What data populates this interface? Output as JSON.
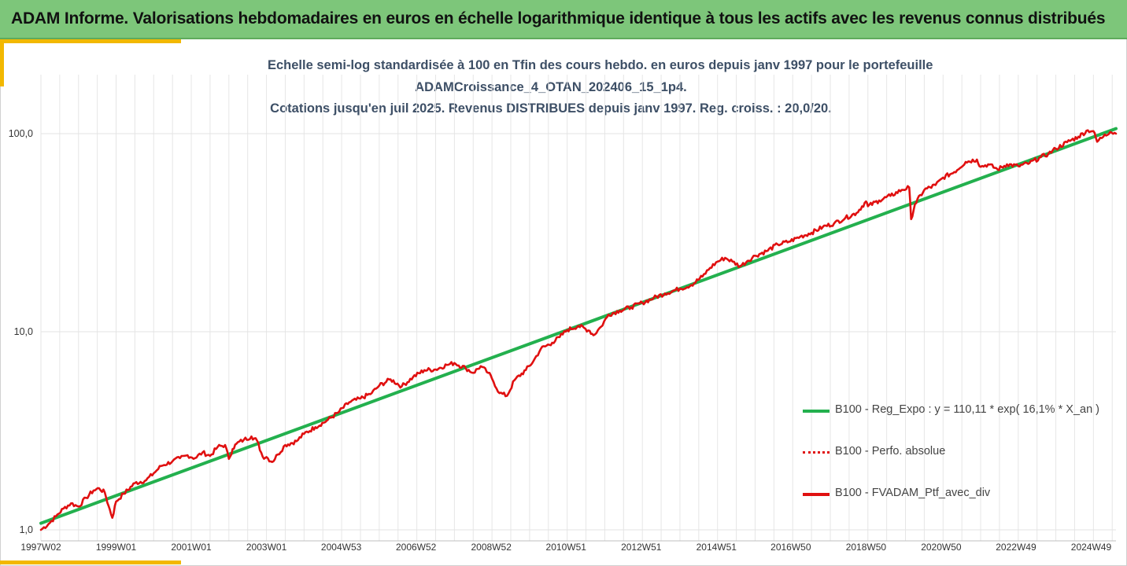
{
  "header": {
    "title": "ADAM Informe. Valorisations hebdomadaires en euros en échelle logarithmique identique à tous les actifs avec les revenus connus distribués"
  },
  "colors": {
    "header_bg": "#7dc67a",
    "accent": "#f2b800",
    "series_green": "#23b04e",
    "series_red": "#e01010",
    "gridline": "#e6e6e6",
    "title_text": "#3d4f66"
  },
  "chart_data": {
    "type": "line",
    "title_lines": [
      "Echelle semi-log standardisée à 100 en Tfin des cours hebdo.  en euros depuis janv 1997 pour le portefeuille",
      "ADAMCroissance_4_OTAN_202406_15_1p4.",
      "Cotations  jusqu'en juil 2025. Revenus DISTRIBUES depuis janv 1997. Reg. croiss. : 20,0/20."
    ],
    "y_scale": "log",
    "ylim": [
      1,
      180
    ],
    "y_ticks": [
      {
        "value": 1,
        "label": "1,0"
      },
      {
        "value": 10,
        "label": "10,0"
      },
      {
        "value": 100,
        "label": "100,0"
      }
    ],
    "xlim": [
      1997.0,
      2025.6
    ],
    "x_ticks": [
      {
        "value": 1997.0,
        "label": "1997W02"
      },
      {
        "value": 1999.0,
        "label": "1999W01"
      },
      {
        "value": 2001.0,
        "label": "2001W01"
      },
      {
        "value": 2003.0,
        "label": "2003W01"
      },
      {
        "value": 2004.99,
        "label": "2004W53"
      },
      {
        "value": 2006.98,
        "label": "2006W52"
      },
      {
        "value": 2008.98,
        "label": "2008W52"
      },
      {
        "value": 2010.97,
        "label": "2010W51"
      },
      {
        "value": 2012.97,
        "label": "2012W51"
      },
      {
        "value": 2014.97,
        "label": "2014W51"
      },
      {
        "value": 2016.95,
        "label": "2016W50"
      },
      {
        "value": 2018.95,
        "label": "2018W50"
      },
      {
        "value": 2020.95,
        "label": "2020W50"
      },
      {
        "value": 2022.94,
        "label": "2022W49"
      },
      {
        "value": 2024.94,
        "label": "2024W49"
      }
    ],
    "grid": true,
    "legend_position": "right",
    "series": [
      {
        "name": "B100 - Reg_Expo : y = 110,11 * exp( 16,1% *  X_an )",
        "style": "solid",
        "color": "#23b04e",
        "x": [
          1997.0,
          2025.6
        ],
        "y": [
          1.08,
          106
        ]
      },
      {
        "name": "B100 - Perfo. absolue",
        "style": "dotted",
        "color": "#e01010",
        "x": [],
        "y": []
      },
      {
        "name": "B100 - FVADAM_Ptf_avec_div",
        "style": "solid",
        "color": "#e01010",
        "x": [
          1997.0,
          1997.2,
          1997.4,
          1997.6,
          1997.8,
          1998.0,
          1998.2,
          1998.4,
          1998.55,
          1998.7,
          1998.8,
          1998.9,
          1999.0,
          1999.2,
          1999.5,
          1999.8,
          2000.0,
          2000.2,
          2000.5,
          2000.7,
          2000.9,
          2001.1,
          2001.3,
          2001.5,
          2001.7,
          2001.9,
          2002.0,
          2002.1,
          2002.2,
          2002.4,
          2002.6,
          2002.75,
          2002.9,
          2003.0,
          2003.15,
          2003.3,
          2003.5,
          2003.8,
          2004.0,
          2004.3,
          2004.6,
          2004.9,
          2005.2,
          2005.5,
          2005.8,
          2006.0,
          2006.3,
          2006.6,
          2006.9,
          2007.2,
          2007.5,
          2007.8,
          2008.0,
          2008.3,
          2008.5,
          2008.7,
          2008.9,
          2009.0,
          2009.2,
          2009.4,
          2009.6,
          2009.9,
          2010.1,
          2010.3,
          2010.6,
          2010.8,
          2011.0,
          2011.3,
          2011.6,
          2011.7,
          2011.9,
          2012.1,
          2012.4,
          2012.7,
          2013.0,
          2013.3,
          2013.6,
          2014.0,
          2014.3,
          2014.6,
          2014.8,
          2015.0,
          2015.2,
          2015.4,
          2015.6,
          2015.8,
          2016.0,
          2016.3,
          2016.6,
          2016.9,
          2017.2,
          2017.5,
          2017.8,
          2018.1,
          2018.4,
          2018.7,
          2018.95,
          2019.0,
          2019.3,
          2019.6,
          2019.9,
          2020.1,
          2020.15,
          2020.25,
          2020.5,
          2020.8,
          2021.0,
          2021.3,
          2021.6,
          2021.9,
          2022.0,
          2022.2,
          2022.45,
          2022.7,
          2023.0,
          2023.3,
          2023.6,
          2023.8,
          2024.0,
          2024.3,
          2024.6,
          2024.85,
          2025.0,
          2025.1,
          2025.3,
          2025.45,
          2025.6
        ],
        "y": [
          1.0,
          1.07,
          1.17,
          1.28,
          1.36,
          1.31,
          1.45,
          1.58,
          1.62,
          1.54,
          1.32,
          1.15,
          1.39,
          1.52,
          1.72,
          1.78,
          1.93,
          2.1,
          2.22,
          2.3,
          2.38,
          2.3,
          2.46,
          2.36,
          2.62,
          2.68,
          2.28,
          2.56,
          2.72,
          2.85,
          2.96,
          2.82,
          2.34,
          2.33,
          2.2,
          2.4,
          2.68,
          2.8,
          3.05,
          3.3,
          3.55,
          3.9,
          4.4,
          4.6,
          4.9,
          5.35,
          5.75,
          5.3,
          5.9,
          6.4,
          6.45,
          6.8,
          6.95,
          6.55,
          6.2,
          6.7,
          6.2,
          5.8,
          4.9,
          4.75,
          5.7,
          6.4,
          7.1,
          8.2,
          8.8,
          9.4,
          10.2,
          10.7,
          10.1,
          9.6,
          10.6,
          12.2,
          12.8,
          13.3,
          14.0,
          14.8,
          15.6,
          16.5,
          17.2,
          19.0,
          21.0,
          22.6,
          23.6,
          22.6,
          21.4,
          22.8,
          24.2,
          25.5,
          27.6,
          28.5,
          30.2,
          31.6,
          33.8,
          35.2,
          37.5,
          39.8,
          45.5,
          43.0,
          46.0,
          48.5,
          52.0,
          53.5,
          37.0,
          44.0,
          52.0,
          55.0,
          60.0,
          64.0,
          72.0,
          74.0,
          68.0,
          70.0,
          66.0,
          70.0,
          68.5,
          71.0,
          76.0,
          79.0,
          84.0,
          90.5,
          96.5,
          104.0,
          103.0,
          91.0,
          99.0,
          102.0,
          100.0
        ]
      }
    ]
  }
}
